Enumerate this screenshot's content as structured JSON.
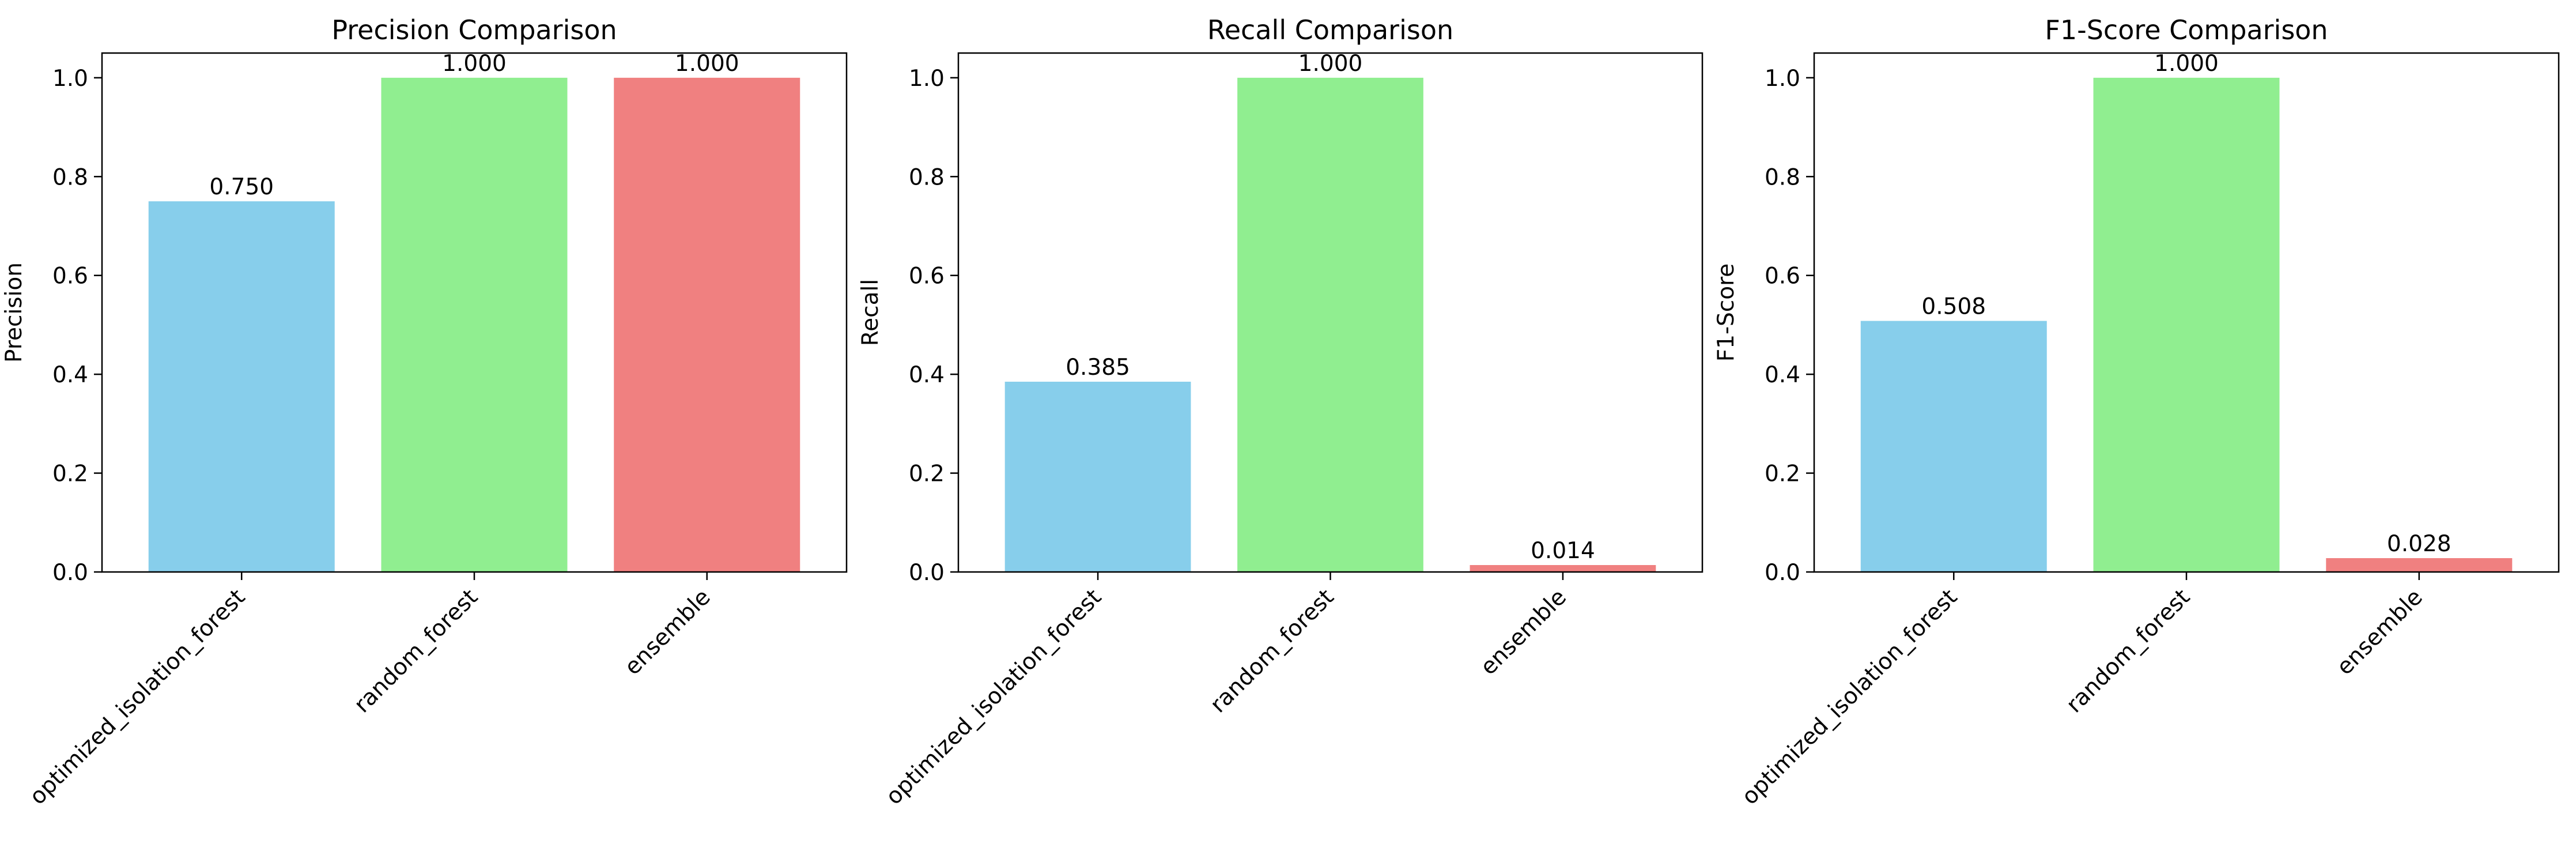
{
  "chart_data": [
    {
      "type": "bar",
      "title": "Precision Comparison",
      "xlabel": "",
      "ylabel": "Precision",
      "categories": [
        "optimized_isolation_forest",
        "random_forest",
        "ensemble"
      ],
      "values": [
        0.75,
        1.0,
        1.0
      ],
      "value_labels": [
        "0.750",
        "1.000",
        "1.000"
      ],
      "colors": [
        "#87CEEB",
        "#90EE90",
        "#F08080"
      ],
      "ylim": [
        0,
        1.05
      ],
      "yticks": [
        "0.0",
        "0.2",
        "0.4",
        "0.6",
        "0.8",
        "1.0"
      ],
      "grid": false
    },
    {
      "type": "bar",
      "title": "Recall Comparison",
      "xlabel": "",
      "ylabel": "Recall",
      "categories": [
        "optimized_isolation_forest",
        "random_forest",
        "ensemble"
      ],
      "values": [
        0.385,
        1.0,
        0.014
      ],
      "value_labels": [
        "0.385",
        "1.000",
        "0.014"
      ],
      "colors": [
        "#87CEEB",
        "#90EE90",
        "#F08080"
      ],
      "ylim": [
        0,
        1.05
      ],
      "yticks": [
        "0.0",
        "0.2",
        "0.4",
        "0.6",
        "0.8",
        "1.0"
      ],
      "grid": false
    },
    {
      "type": "bar",
      "title": "F1-Score Comparison",
      "xlabel": "",
      "ylabel": "F1-Score",
      "categories": [
        "optimized_isolation_forest",
        "random_forest",
        "ensemble"
      ],
      "values": [
        0.508,
        1.0,
        0.028
      ],
      "value_labels": [
        "0.508",
        "1.000",
        "0.028"
      ],
      "colors": [
        "#87CEEB",
        "#90EE90",
        "#F08080"
      ],
      "ylim": [
        0,
        1.05
      ],
      "yticks": [
        "0.0",
        "0.2",
        "0.4",
        "0.6",
        "0.8",
        "1.0"
      ],
      "grid": false
    }
  ]
}
